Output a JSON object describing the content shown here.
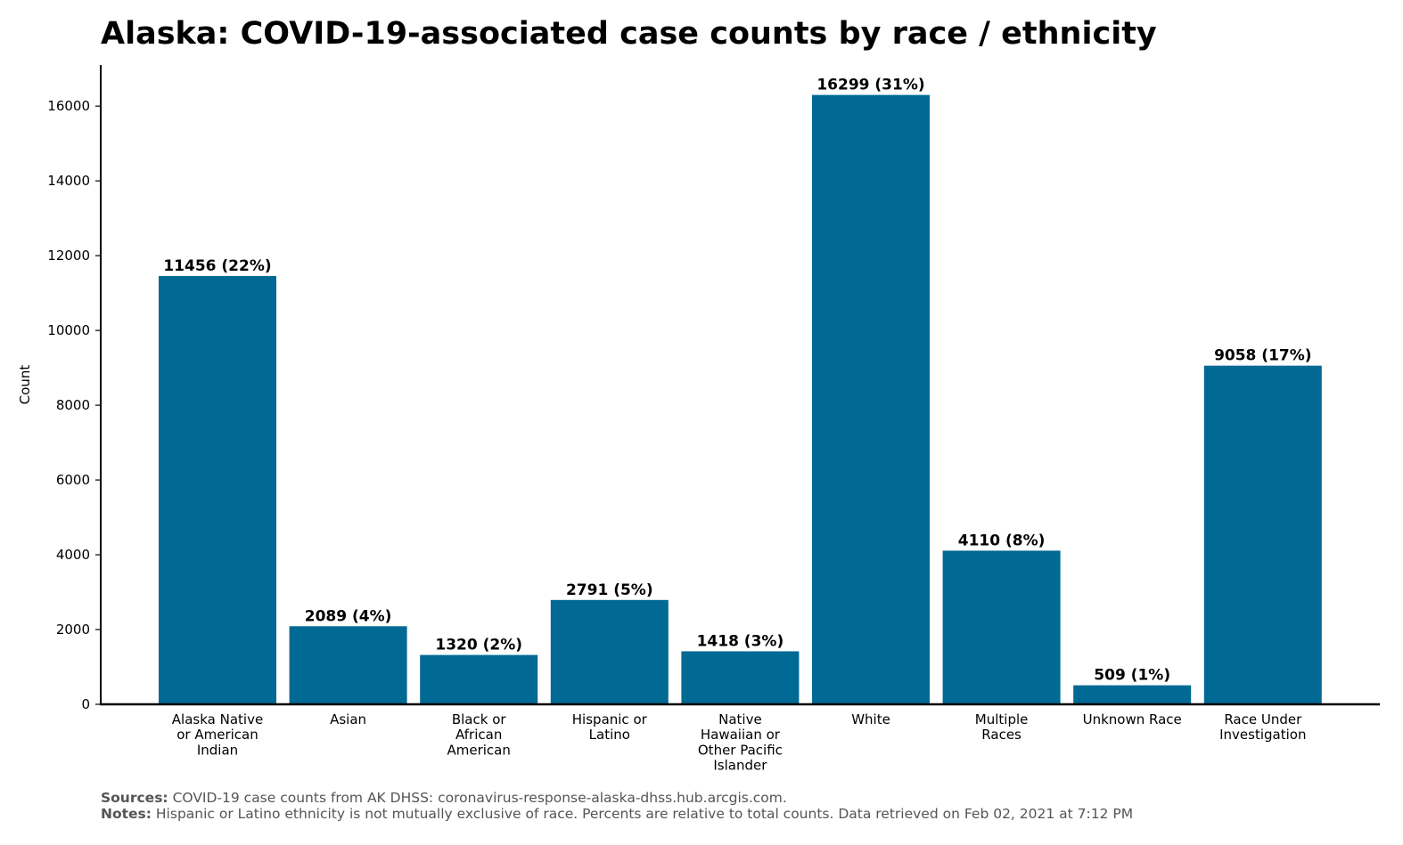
{
  "chart_data": {
    "type": "bar",
    "title": "Alaska: COVID-19-associated case counts by race / ethnicity",
    "ylabel": "Count",
    "xlabel": "",
    "ylim": [
      0,
      17100
    ],
    "yticks": [
      0,
      2000,
      4000,
      6000,
      8000,
      10000,
      12000,
      14000,
      16000
    ],
    "bar_color": "#006994",
    "categories": [
      [
        "Alaska Native",
        "or American",
        "Indian"
      ],
      [
        "Asian"
      ],
      [
        "Black or",
        "African",
        "American"
      ],
      [
        "Hispanic or",
        "Latino"
      ],
      [
        "Native",
        "Hawaiian or",
        "Other Pacific",
        "Islander"
      ],
      [
        "White"
      ],
      [
        "Multiple",
        "Races"
      ],
      [
        "Unknown Race"
      ],
      [
        "Race Under",
        "Investigation"
      ]
    ],
    "values": [
      11456,
      2089,
      1320,
      2791,
      1418,
      16299,
      4110,
      509,
      9058
    ],
    "data_labels": [
      "11456 (22%)",
      "2089 (4%)",
      "1320 (2%)",
      "2791 (5%)",
      "1418 (3%)",
      "16299 (31%)",
      "4110 (8%)",
      "509 (1%)",
      "9058 (17%)"
    ]
  },
  "footer": {
    "sources_label": "Sources:",
    "sources_text": "COVID-19 case counts from AK DHSS: coronavirus-response-alaska-dhss.hub.arcgis.com.",
    "notes_label": "Notes:",
    "notes_text": "Hispanic or Latino ethnicity is not mutually exclusive of race. Percents are relative to total counts. Data retrieved on Feb 02, 2021 at 7:12 PM"
  }
}
